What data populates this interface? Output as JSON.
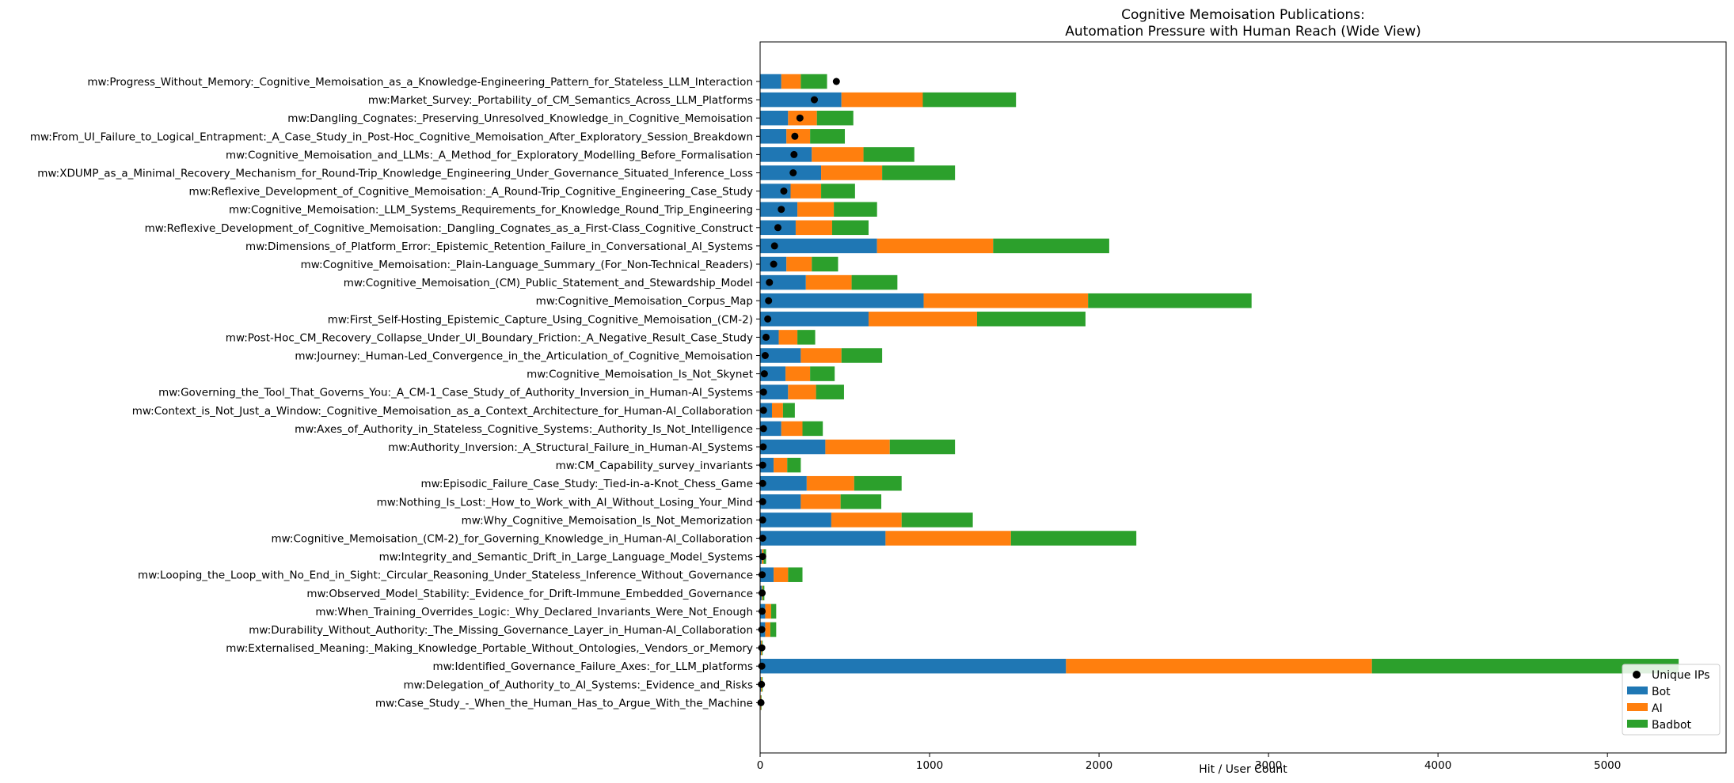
{
  "chart_data": {
    "type": "bar",
    "orientation": "horizontal-stacked",
    "title": "Cognitive Memoisation Publications:",
    "subtitle": "Automation Pressure with Human Reach (Wide View)",
    "xlabel": "Hit / User Count",
    "ylabel": "",
    "xlim": [
      0,
      5700
    ],
    "xticks": [
      0,
      1000,
      2000,
      3000,
      4000,
      5000
    ],
    "grid": false,
    "legend_position": "bottom-right",
    "categories": [
      "mw:Progress_Without_Memory:_Cognitive_Memoisation_as_a_Knowledge-Engineering_Pattern_for_Stateless_LLM_Interaction",
      "mw:Market_Survey:_Portability_of_CM_Semantics_Across_LLM_Platforms",
      "mw:Dangling_Cognates:_Preserving_Unresolved_Knowledge_in_Cognitive_Memoisation",
      "mw:From_UI_Failure_to_Logical_Entrapment:_A_Case_Study_in_Post-Hoc_Cognitive_Memoisation_After_Exploratory_Session_Breakdown",
      "mw:Cognitive_Memoisation_and_LLMs:_A_Method_for_Exploratory_Modelling_Before_Formalisation",
      "mw:XDUMP_as_a_Minimal_Recovery_Mechanism_for_Round-Trip_Knowledge_Engineering_Under_Governance_Situated_Inference_Loss",
      "mw:Reflexive_Development_of_Cognitive_Memoisation:_A_Round-Trip_Cognitive_Engineering_Case_Study",
      "mw:Cognitive_Memoisation:_LLM_Systems_Requirements_for_Knowledge_Round_Trip_Engineering",
      "mw:Reflexive_Development_of_Cognitive_Memoisation:_Dangling_Cognates_as_a_First-Class_Cognitive_Construct",
      "mw:Dimensions_of_Platform_Error:_Epistemic_Retention_Failure_in_Conversational_AI_Systems",
      "mw:Cognitive_Memoisation:_Plain-Language_Summary_(For_Non-Technical_Readers)",
      "mw:Cognitive_Memoisation_(CM)_Public_Statement_and_Stewardship_Model",
      "mw:Cognitive_Memoisation_Corpus_Map",
      "mw:First_Self-Hosting_Epistemic_Capture_Using_Cognitive_Memoisation_(CM-2)",
      "mw:Post-Hoc_CM_Recovery_Collapse_Under_UI_Boundary_Friction:_A_Negative_Result_Case_Study",
      "mw:Journey:_Human-Led_Convergence_in_the_Articulation_of_Cognitive_Memoisation",
      "mw:Cognitive_Memoisation_Is_Not_Skynet",
      "mw:Governing_the_Tool_That_Governs_You:_A_CM-1_Case_Study_of_Authority_Inversion_in_Human-AI_Systems",
      "mw:Context_is_Not_Just_a_Window:_Cognitive_Memoisation_as_a_Context_Architecture_for_Human-AI_Collaboration",
      "mw:Axes_of_Authority_in_Stateless_Cognitive_Systems:_Authority_Is_Not_Intelligence",
      "mw:Authority_Inversion:_A_Structural_Failure_in_Human-AI_Systems",
      "mw:CM_Capability_survey_invariants",
      "mw:Episodic_Failure_Case_Study:_Tied-in-a-Knot_Chess_Game",
      "mw:Nothing_Is_Lost:_How_to_Work_with_AI_Without_Losing_Your_Mind",
      "mw:Why_Cognitive_Memoisation_Is_Not_Memorization",
      "mw:Cognitive_Memoisation_(CM-2)_for_Governing_Knowledge_in_Human-AI_Collaboration",
      "mw:Integrity_and_Semantic_Drift_in_Large_Language_Model_Systems",
      "mw:Looping_the_Loop_with_No_End_in_Sight:_Circular_Reasoning_Under_Stateless_Inference_Without_Governance",
      "mw:Observed_Model_Stability:_Evidence_for_Drift-Immune_Embedded_Governance",
      "mw:When_Training_Overrides_Logic:_Why_Declared_Invariants_Were_Not_Enough",
      "mw:Durability_Without_Authority:_The_Missing_Governance_Layer_in_Human-AI_Collaboration",
      "mw:Externalised_Meaning:_Making_Knowledge_Portable_Without_Ontologies,_Vendors_or_Memory",
      "mw:Identified_Governance_Failure_Axes:_for_LLM_platforms",
      "mw:Delegation_of_Authority_to_AI_Systems:_Evidence_and_Risks",
      "mw:Case_Study_-_When_the_Human_Has_to_Argue_With_the_Machine"
    ],
    "series": [
      {
        "name": "Bot",
        "color": "#1f77b4",
        "values": [
          125,
          480,
          165,
          155,
          305,
          360,
          180,
          220,
          210,
          690,
          155,
          270,
          965,
          640,
          110,
          240,
          150,
          165,
          70,
          125,
          385,
          80,
          275,
          240,
          420,
          740,
          10,
          80,
          10,
          30,
          30,
          5,
          1805,
          5,
          3
        ]
      },
      {
        "name": "AI",
        "color": "#ff7f0e",
        "values": [
          115,
          480,
          170,
          140,
          305,
          360,
          180,
          215,
          215,
          685,
          150,
          270,
          970,
          640,
          110,
          240,
          145,
          165,
          65,
          125,
          380,
          80,
          280,
          235,
          415,
          740,
          10,
          85,
          5,
          35,
          30,
          5,
          1805,
          5,
          3
        ]
      },
      {
        "name": "Badbot",
        "color": "#2ca02c",
        "values": [
          155,
          550,
          215,
          205,
          300,
          430,
          200,
          255,
          215,
          685,
          155,
          270,
          965,
          640,
          105,
          240,
          145,
          165,
          70,
          120,
          385,
          80,
          280,
          240,
          420,
          740,
          15,
          85,
          10,
          30,
          35,
          5,
          1810,
          5,
          3
        ]
      }
    ],
    "scatter": {
      "name": "Unique IPs",
      "color": "#000000",
      "values": [
        450,
        320,
        235,
        205,
        200,
        195,
        140,
        125,
        105,
        85,
        80,
        55,
        50,
        45,
        35,
        30,
        25,
        20,
        20,
        20,
        18,
        15,
        15,
        15,
        15,
        15,
        15,
        12,
        12,
        12,
        10,
        10,
        10,
        8,
        5
      ]
    }
  }
}
